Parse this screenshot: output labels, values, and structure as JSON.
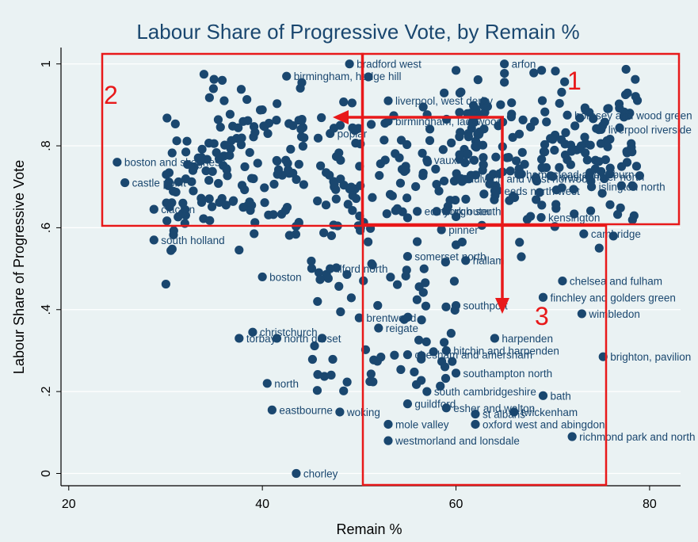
{
  "chart_data": {
    "type": "scatter",
    "title": "Labour Share of Progressive Vote, by Remain %",
    "xlabel": "Remain %",
    "ylabel": "Labour Share of Progressive Vote",
    "xlim": [
      19.2,
      83.2
    ],
    "ylim": [
      -0.03,
      1.04
    ],
    "x_ticks": [
      {
        "v": 20,
        "label": "20"
      },
      {
        "v": 40,
        "label": "40"
      },
      {
        "v": 60,
        "label": "60"
      },
      {
        "v": 80,
        "label": "80"
      }
    ],
    "y_ticks": [
      {
        "v": 0,
        "label": "0"
      },
      {
        "v": 0.2,
        "label": ".2"
      },
      {
        "v": 0.4,
        "label": ".4"
      },
      {
        "v": 0.6,
        "label": ".6"
      },
      {
        "v": 0.8,
        "label": ".8"
      },
      {
        "v": 1,
        "label": "1"
      }
    ],
    "marker_color": "#1a476f",
    "labeled_points": [
      {
        "x": 43.5,
        "y": 0.0,
        "label": "chorley"
      },
      {
        "x": 37.6,
        "y": 0.33,
        "label": "torbay"
      },
      {
        "x": 41.5,
        "y": 0.33,
        "label": "north dorset"
      },
      {
        "x": 25.0,
        "y": 0.76,
        "label": "boston and skegness"
      },
      {
        "x": 28.8,
        "y": 0.645,
        "label": "clacton"
      },
      {
        "x": 28.8,
        "y": 0.57,
        "label": "south holland"
      },
      {
        "x": 25.8,
        "y": 0.71,
        "label": "castle point"
      },
      {
        "x": 42.5,
        "y": 0.97,
        "label": "birmingham, hodge hill"
      },
      {
        "x": 65.0,
        "y": 1.0,
        "label": "arfon"
      },
      {
        "x": 68.8,
        "y": 0.625,
        "label": "kensington"
      },
      {
        "x": 73.2,
        "y": 0.585,
        "label": "cambridge"
      },
      {
        "x": 71.0,
        "y": 0.47,
        "label": "chelsea and fulham"
      },
      {
        "x": 69.0,
        "y": 0.43,
        "label": "finchley and golders green"
      },
      {
        "x": 73.0,
        "y": 0.39,
        "label": "wimbledon"
      },
      {
        "x": 75.2,
        "y": 0.285,
        "label": "brighton, pavilion"
      },
      {
        "x": 69.0,
        "y": 0.19,
        "label": "bath"
      },
      {
        "x": 66.0,
        "y": 0.15,
        "label": "twickenham"
      },
      {
        "x": 72.0,
        "y": 0.09,
        "label": "richmond park and north kingston"
      },
      {
        "x": 62.0,
        "y": 0.12,
        "label": "oxford west and abingdon"
      },
      {
        "x": 62.0,
        "y": 0.145,
        "label": "st albans"
      },
      {
        "x": 53.0,
        "y": 0.12,
        "label": "mole valley"
      },
      {
        "x": 53.0,
        "y": 0.08,
        "label": "westmorland and lonsdale"
      },
      {
        "x": 40.5,
        "y": 0.22,
        "label": "north"
      },
      {
        "x": 39.0,
        "y": 0.345,
        "label": "christchurch"
      },
      {
        "x": 41.0,
        "y": 0.155,
        "label": "eastbourne"
      },
      {
        "x": 40.0,
        "y": 0.48,
        "label": "boston"
      },
      {
        "x": 57.0,
        "y": 0.765,
        "label": "vauxhall"
      },
      {
        "x": 75.0,
        "y": 0.84,
        "label": "liverpool riverside"
      },
      {
        "x": 71.5,
        "y": 0.875,
        "label": "hornsey and wood green"
      },
      {
        "x": 74.0,
        "y": 0.7,
        "label": "islington north"
      },
      {
        "x": 70.0,
        "y": 0.725,
        "label": "westminster north"
      },
      {
        "x": 66.5,
        "y": 0.73,
        "label": "hampstead and kilburn"
      },
      {
        "x": 64.0,
        "y": 0.69,
        "label": "leeds north west"
      },
      {
        "x": 60.5,
        "y": 0.72,
        "label": "dulwich and west norwood"
      },
      {
        "x": 58.0,
        "y": 0.64,
        "label": "york outer"
      },
      {
        "x": 56.0,
        "y": 0.64,
        "label": "edinburgh south"
      },
      {
        "x": 58.5,
        "y": 0.595,
        "label": "pinner"
      },
      {
        "x": 55.0,
        "y": 0.53,
        "label": "somerset north"
      },
      {
        "x": 60.0,
        "y": 0.41,
        "label": "southport"
      },
      {
        "x": 61.0,
        "y": 0.52,
        "label": "hallam"
      },
      {
        "x": 64.0,
        "y": 0.33,
        "label": "harpenden"
      },
      {
        "x": 59.0,
        "y": 0.3,
        "label": "hitchin and harpenden"
      },
      {
        "x": 55.0,
        "y": 0.29,
        "label": "chesham and amersham"
      },
      {
        "x": 60.0,
        "y": 0.245,
        "label": "southampton north"
      },
      {
        "x": 57.0,
        "y": 0.2,
        "label": "south cambridgeshire"
      },
      {
        "x": 55.0,
        "y": 0.17,
        "label": "guildford"
      },
      {
        "x": 59.0,
        "y": 0.16,
        "label": "esher and walton"
      },
      {
        "x": 47.0,
        "y": 0.83,
        "label": "poplar"
      },
      {
        "x": 53.0,
        "y": 0.86,
        "label": "birmingham, ladywood"
      },
      {
        "x": 53.0,
        "y": 0.91,
        "label": "liverpool, west derby"
      },
      {
        "x": 49.0,
        "y": 1.0,
        "label": "bradford west"
      },
      {
        "x": 47.0,
        "y": 0.5,
        "label": "ilford north"
      },
      {
        "x": 50.0,
        "y": 0.38,
        "label": "brentwood"
      },
      {
        "x": 52.0,
        "y": 0.355,
        "label": "reigate"
      },
      {
        "x": 48.0,
        "y": 0.15,
        "label": "woking"
      }
    ],
    "scatter_cloud": [],
    "annotations": {
      "quadrant_labels": [
        "1",
        "2",
        "3"
      ]
    }
  }
}
